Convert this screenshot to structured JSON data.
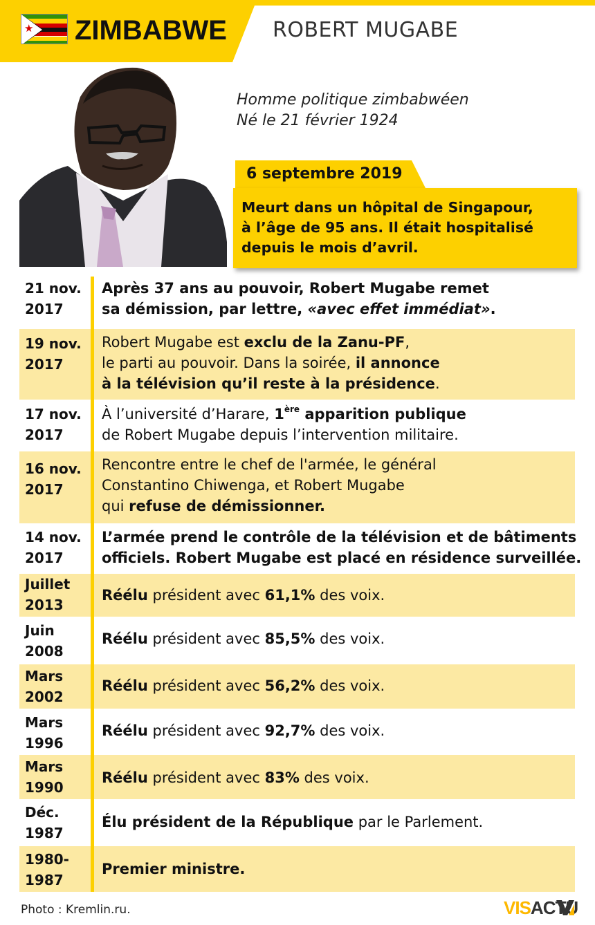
{
  "header": {
    "country": "ZIMBABWE",
    "person": "ROBERT MUGABE",
    "accent_color": "#fdd000",
    "flag_icon": "zimbabwe-flag-icon"
  },
  "bio": {
    "line1": "Homme politique zimbabwéen",
    "line2": "Né le 21 février 1924"
  },
  "death": {
    "date": "6 septembre 2019",
    "lines": [
      "Meurt dans un hôpital de Singapour,",
      "à l’âge de 95 ans. Il était hospitalisé",
      "depuis le mois d’avril."
    ]
  },
  "timeline": [
    {
      "date1": "21 nov.",
      "date2": "2017",
      "lines": [
        [
          {
            "t": "Après 37 ans au pouvoir, Robert Mugabe remet",
            "b": true
          }
        ],
        [
          {
            "t": "sa démission, par lettre, ",
            "b": true
          },
          {
            "t": "«avec effet immédiat»",
            "b": true,
            "i": true
          },
          {
            "t": ".",
            "b": true
          }
        ]
      ]
    },
    {
      "date1": "19 nov.",
      "date2": "2017",
      "lines": [
        [
          {
            "t": "Robert Mugabe est "
          },
          {
            "t": "exclu de la Zanu-PF",
            "b": true
          },
          {
            "t": ","
          }
        ],
        [
          {
            "t": "le parti au pouvoir. Dans la soirée, "
          },
          {
            "t": "il annonce",
            "b": true
          }
        ],
        [
          {
            "t": "à la télévision qu’il reste à la présidence",
            "b": true
          },
          {
            "t": "."
          }
        ]
      ]
    },
    {
      "date1": "17 nov.",
      "date2": "2017",
      "lines": [
        [
          {
            "t": "À l’université d’Harare, "
          },
          {
            "t": "1",
            "b": true
          },
          {
            "t": "ère",
            "b": true,
            "sup": true
          },
          {
            "t": " apparition publique",
            "b": true
          }
        ],
        [
          {
            "t": "de Robert Mugabe depuis l’intervention militaire."
          }
        ]
      ]
    },
    {
      "date1": "16 nov.",
      "date2": "2017",
      "lines": [
        [
          {
            "t": "Rencontre entre le chef de l'armée, le général"
          }
        ],
        [
          {
            "t": "Constantino Chiwenga, et Robert Mugabe"
          }
        ],
        [
          {
            "t": "qui "
          },
          {
            "t": "refuse de démissionner.",
            "b": true
          }
        ]
      ]
    },
    {
      "date1": "14 nov.",
      "date2": "2017",
      "lines": [
        [
          {
            "t": "L’armée prend le contrôle de la télévision et de bâtiments",
            "b": true
          }
        ],
        [
          {
            "t": "officiels. Robert Mugabe est placé en résidence surveillée.",
            "b": true
          }
        ]
      ]
    },
    {
      "date1": "Juillet",
      "date2": "2013",
      "lines": [
        [
          {
            "t": "Réélu",
            "b": true
          },
          {
            "t": " président avec "
          },
          {
            "t": "61,1%",
            "b": true
          },
          {
            "t": " des voix."
          }
        ]
      ]
    },
    {
      "date1": "Juin",
      "date2": "2008",
      "lines": [
        [
          {
            "t": "Réélu",
            "b": true
          },
          {
            "t": " président avec "
          },
          {
            "t": "85,5%",
            "b": true
          },
          {
            "t": " des voix."
          }
        ]
      ]
    },
    {
      "date1": "Mars",
      "date2": "2002",
      "lines": [
        [
          {
            "t": "Réélu",
            "b": true
          },
          {
            "t": " président avec "
          },
          {
            "t": "56,2%",
            "b": true
          },
          {
            "t": " des voix."
          }
        ]
      ]
    },
    {
      "date1": "Mars",
      "date2": "1996",
      "lines": [
        [
          {
            "t": "Réélu",
            "b": true
          },
          {
            "t": " président avec "
          },
          {
            "t": "92,7%",
            "b": true
          },
          {
            "t": " des voix."
          }
        ]
      ]
    },
    {
      "date1": "Mars",
      "date2": "1990",
      "lines": [
        [
          {
            "t": "Réélu",
            "b": true
          },
          {
            "t": " président avec "
          },
          {
            "t": "83%",
            "b": true
          },
          {
            "t": " des voix."
          }
        ]
      ]
    },
    {
      "date1": "Déc.",
      "date2": "1987",
      "lines": [
        [
          {
            "t": "Élu président de la République",
            "b": true
          },
          {
            "t": " par le Parlement."
          }
        ]
      ]
    },
    {
      "date1": "1980-",
      "date2": "1987",
      "lines": [
        [
          {
            "t": "Premier ministre.",
            "b": true
          }
        ]
      ]
    }
  ],
  "footer": {
    "credit": "Photo : Kremlin.ru.",
    "logo_vis": "VIS",
    "logo_actu": "ACTU",
    "logo_icon": "visactu-logo-icon"
  }
}
